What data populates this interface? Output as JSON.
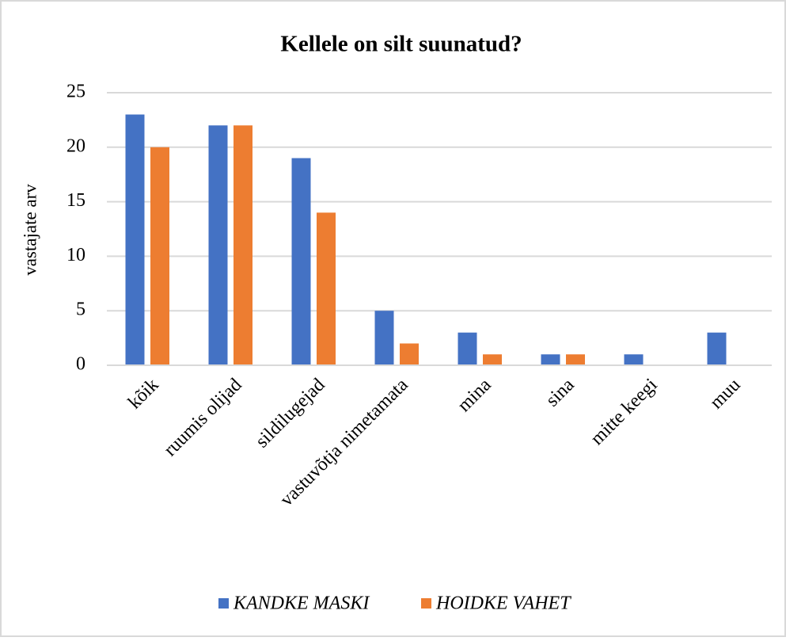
{
  "chart_data": {
    "type": "bar",
    "title": "Kellele on silt suunatud?",
    "y_label": "vastajate arv",
    "categories": [
      "kõik",
      "ruumis olijad",
      "sildilugejad",
      "vastuvõtja nimetamata",
      "mina",
      "sina",
      "mitte keegi",
      "muu"
    ],
    "series": [
      {
        "name": "KANDKE MASKI",
        "color": "#4472c4",
        "values": [
          23,
          22,
          19,
          5,
          3,
          1,
          1,
          3
        ]
      },
      {
        "name": "HOIDKE VAHET",
        "color": "#ed7d31",
        "values": [
          20,
          22,
          14,
          2,
          1,
          1,
          0,
          0
        ]
      }
    ],
    "ylim": [
      0,
      25
    ],
    "yticks": [
      0,
      5,
      10,
      15,
      20,
      25
    ],
    "grid": true,
    "legend": "bottom"
  }
}
